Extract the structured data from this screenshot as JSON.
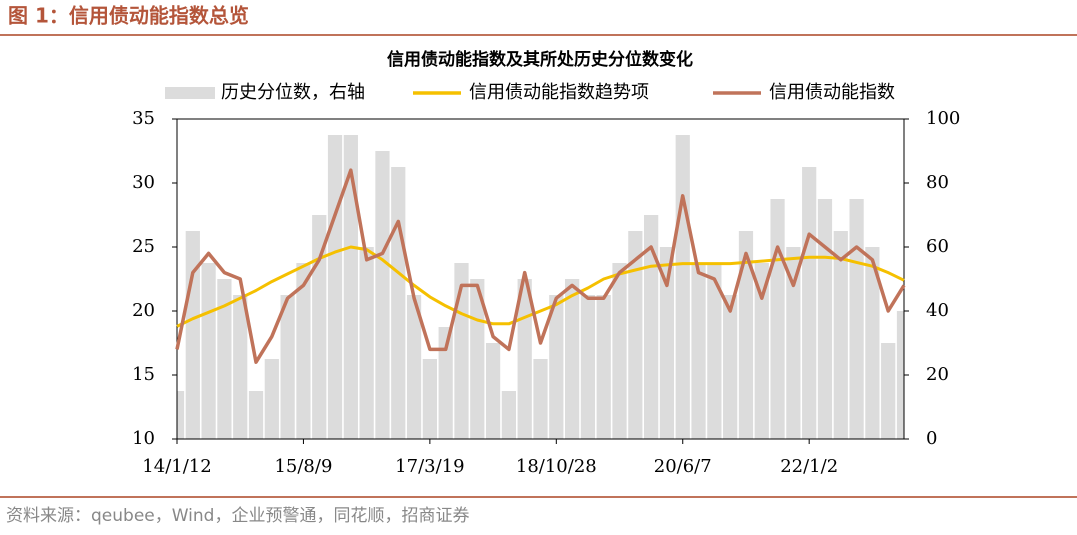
{
  "header": {
    "title": "图 1：信用债动能指数总览"
  },
  "footer": {
    "source": "资料来源：qeubee，Wind，企业预警通，同花顺，招商证券"
  },
  "chart_data": {
    "type": "line",
    "title": "信用债动能指数及其所处历史分位数变化",
    "categories": [
      "14/1/12",
      null,
      null,
      null,
      null,
      null,
      null,
      null,
      "15/8/9",
      null,
      null,
      null,
      null,
      null,
      null,
      null,
      "17/3/19",
      null,
      null,
      null,
      null,
      null,
      null,
      null,
      "18/10/28",
      null,
      null,
      null,
      null,
      null,
      null,
      null,
      "20/6/7",
      null,
      null,
      null,
      null,
      null,
      null,
      null,
      "22/1/2",
      null,
      null,
      null,
      null,
      null,
      null
    ],
    "series": [
      {
        "name": "历史分位数，右轴",
        "type": "bar",
        "axis": "y2",
        "color": "#dcdcdc",
        "values": [
          15,
          65,
          55,
          50,
          45,
          15,
          25,
          45,
          55,
          70,
          95,
          95,
          60,
          90,
          85,
          45,
          25,
          35,
          55,
          50,
          30,
          15,
          50,
          25,
          45,
          50,
          45,
          45,
          55,
          65,
          70,
          60,
          95,
          55,
          55,
          45,
          65,
          55,
          75,
          60,
          85,
          75,
          65,
          75,
          60,
          30,
          40
        ]
      },
      {
        "name": "信用债动能指数趋势项",
        "type": "line",
        "color": "#f5c000",
        "values": [
          18.8,
          19.4,
          19.9,
          20.4,
          21,
          21.6,
          22.3,
          22.9,
          23.5,
          24.1,
          24.6,
          25,
          24.8,
          24,
          23,
          22,
          21.1,
          20.4,
          19.8,
          19.3,
          19,
          19,
          19.5,
          20,
          20.5,
          21.2,
          21.8,
          22.5,
          22.9,
          23.2,
          23.5,
          23.6,
          23.7,
          23.7,
          23.7,
          23.7,
          23.8,
          23.9,
          24,
          24.1,
          24.2,
          24.2,
          24.1,
          23.8,
          23.5,
          23,
          22.4
        ]
      },
      {
        "name": "信用债动能指数",
        "type": "line",
        "color": "#c0735a",
        "values": [
          17,
          23,
          24.5,
          23,
          22.5,
          16,
          18,
          21,
          22,
          24,
          27.5,
          31,
          24,
          24.5,
          27,
          21,
          17,
          17,
          22,
          22,
          18,
          17,
          23,
          17.5,
          21,
          22,
          21,
          21,
          23,
          24,
          25,
          22,
          29,
          23,
          22.5,
          20,
          24.5,
          21,
          25,
          22,
          26,
          25,
          24,
          25,
          24,
          20,
          22
        ]
      }
    ],
    "ylim": [
      10,
      35
    ],
    "yticks": [
      10,
      15,
      20,
      25,
      30,
      35
    ],
    "y2lim": [
      0,
      100
    ],
    "y2ticks": [
      0,
      20,
      40,
      60,
      80,
      100
    ]
  }
}
